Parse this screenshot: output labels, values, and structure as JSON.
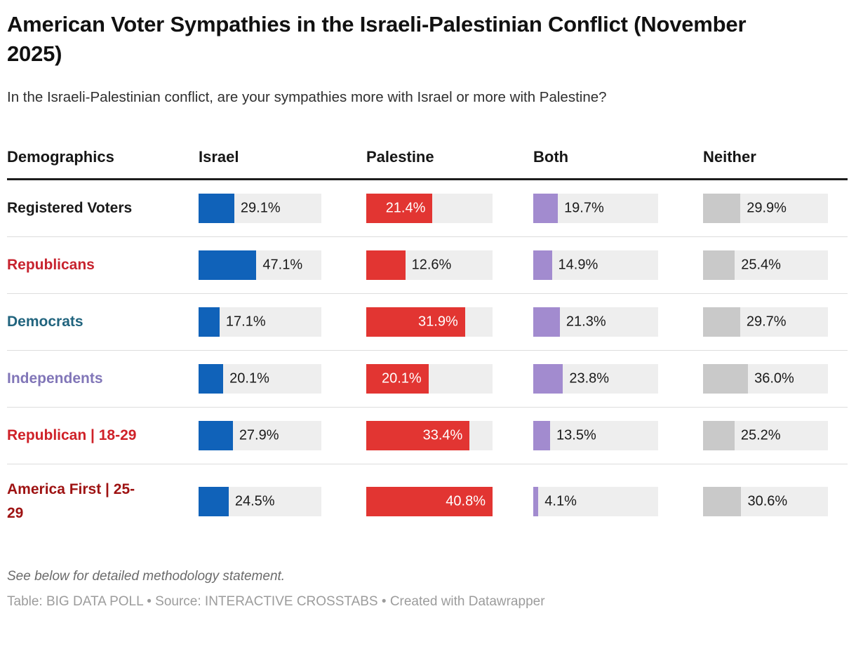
{
  "title": "American Voter Sympathies in the Israeli-Palestinian Conflict (November 2025)",
  "subtitle": "In the Israeli-Palestinian conflict, are your sympathies more with Israel or more with Palestine?",
  "chart_data": {
    "type": "bar",
    "layout": "table-with-horizontal-bars",
    "grid": false,
    "track_color": "#eeeeee",
    "value_label_color": "#1a1a1a",
    "value_label_inside_color": "#ffffff",
    "columns": [
      {
        "key": "demographics",
        "label": "Demographics"
      },
      {
        "key": "israel",
        "label": "Israel",
        "color": "#1062b9",
        "scale_max": 100,
        "track_width": 175
      },
      {
        "key": "palestine",
        "label": "Palestine",
        "color": "#e23532",
        "scale_max": 40.8,
        "track_width": 180
      },
      {
        "key": "both",
        "label": "Both",
        "color": "#a28bcf",
        "scale_max": 100,
        "track_width": 178
      },
      {
        "key": "neither",
        "label": "Neither",
        "color": "#c9c9c9",
        "scale_max": 100,
        "track_width": 178
      }
    ],
    "rows": [
      {
        "label": "Registered Voters",
        "color": "#1a1a1a",
        "cells": [
          {
            "value": 29.1,
            "display": "29.1%",
            "inside": false
          },
          {
            "value": 21.4,
            "display": "21.4%",
            "inside": true
          },
          {
            "value": 19.7,
            "display": "19.7%",
            "inside": false
          },
          {
            "value": 29.9,
            "display": "29.9%",
            "inside": false
          }
        ]
      },
      {
        "label": "Republicans",
        "color": "#c7232e",
        "cells": [
          {
            "value": 47.1,
            "display": "47.1%",
            "inside": false
          },
          {
            "value": 12.6,
            "display": "12.6%",
            "inside": false
          },
          {
            "value": 14.9,
            "display": "14.9%",
            "inside": false
          },
          {
            "value": 25.4,
            "display": "25.4%",
            "inside": false
          }
        ]
      },
      {
        "label": "Democrats",
        "color": "#21647e",
        "cells": [
          {
            "value": 17.1,
            "display": "17.1%",
            "inside": false
          },
          {
            "value": 31.9,
            "display": "31.9%",
            "inside": true
          },
          {
            "value": 21.3,
            "display": "21.3%",
            "inside": false
          },
          {
            "value": 29.7,
            "display": "29.7%",
            "inside": false
          }
        ]
      },
      {
        "label": "Independents",
        "color": "#8176b8",
        "cells": [
          {
            "value": 20.1,
            "display": "20.1%",
            "inside": false
          },
          {
            "value": 20.1,
            "display": "20.1%",
            "inside": true
          },
          {
            "value": 23.8,
            "display": "23.8%",
            "inside": false
          },
          {
            "value": 36.0,
            "display": "36.0%",
            "inside": false
          }
        ]
      },
      {
        "label": "Republican | 18-29",
        "color": "#cf2128",
        "cells": [
          {
            "value": 27.9,
            "display": "27.9%",
            "inside": false
          },
          {
            "value": 33.4,
            "display": "33.4%",
            "inside": true
          },
          {
            "value": 13.5,
            "display": "13.5%",
            "inside": false
          },
          {
            "value": 25.2,
            "display": "25.2%",
            "inside": false
          }
        ]
      },
      {
        "label": "America First | 25-29",
        "color": "#9e1212",
        "cells": [
          {
            "value": 24.5,
            "display": "24.5%",
            "inside": false
          },
          {
            "value": 40.8,
            "display": "40.8%",
            "inside": true
          },
          {
            "value": 4.1,
            "display": "4.1%",
            "inside": false
          },
          {
            "value": 30.6,
            "display": "30.6%",
            "inside": false
          }
        ]
      }
    ]
  },
  "footer": {
    "note": "See below for detailed methodology statement.",
    "attribution": "Table: BIG DATA POLL • Source: INTERACTIVE CROSSTABS • Created with Datawrapper"
  }
}
